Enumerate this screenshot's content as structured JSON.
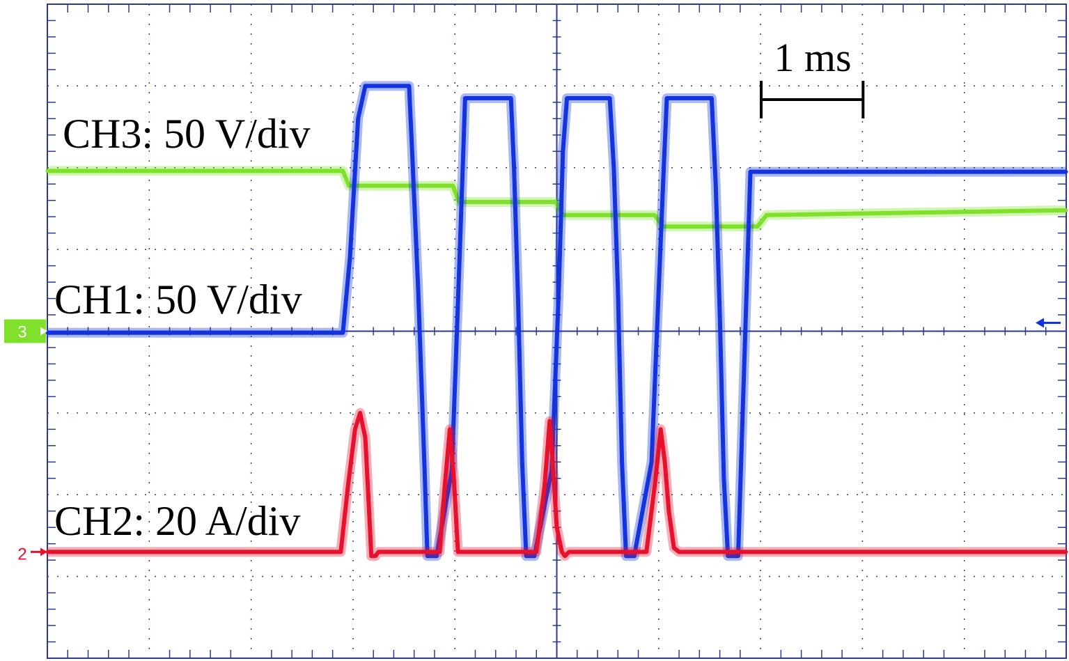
{
  "chart_data": {
    "type": "line",
    "title": "",
    "xlabel": "",
    "ylabel": "",
    "divisions": {
      "x": 10,
      "y": 8
    },
    "xlim": [
      0,
      10
    ],
    "ylim": [
      -4,
      4
    ],
    "grid": true,
    "time_scale": {
      "label": "1 ms",
      "length_div": 1
    },
    "markers": [
      {
        "text": "3",
        "color": "#7fe12a",
        "y": 0
      },
      {
        "text": "2",
        "color": "#e8112d",
        "y": -2.7
      }
    ],
    "series": [
      {
        "name": "CH3: 50 V/div",
        "color": "#7fe12a",
        "x": [
          0,
          2.9,
          2.96,
          3.98,
          4.04,
          4.99,
          5.06,
          5.96,
          6.04,
          6.97,
          7.06,
          10
        ],
        "y": [
          1.96,
          1.96,
          1.78,
          1.78,
          1.58,
          1.58,
          1.42,
          1.42,
          1.28,
          1.28,
          1.42,
          1.48
        ]
      },
      {
        "name": "CH1: 50 V/div",
        "color": "#1233dd",
        "x": [
          0,
          2.9,
          2.97,
          3.05,
          3.12,
          3.18,
          3.55,
          3.58,
          3.64,
          3.7,
          3.73,
          3.82,
          3.97,
          4.03,
          4.08,
          4.1,
          4.55,
          4.58,
          4.62,
          4.66,
          4.7,
          4.78,
          4.95,
          5.02,
          5.06,
          5.1,
          5.52,
          5.56,
          5.6,
          5.64,
          5.68,
          5.76,
          5.93,
          6.0,
          6.05,
          6.08,
          6.52,
          6.56,
          6.6,
          6.64,
          6.68,
          6.78,
          6.9,
          10
        ],
        "y": [
          -0.02,
          -0.02,
          0.9,
          2.6,
          3.0,
          3.0,
          3.0,
          2.2,
          0.5,
          -1.6,
          -2.75,
          -2.75,
          -1.7,
          0.35,
          2.1,
          2.85,
          2.85,
          2.0,
          0.4,
          -1.6,
          -2.75,
          -2.75,
          -1.7,
          0.5,
          2.2,
          2.85,
          2.85,
          2.0,
          0.5,
          -1.6,
          -2.75,
          -2.75,
          -1.6,
          0.5,
          2.0,
          2.85,
          2.85,
          1.8,
          0.2,
          -1.8,
          -2.75,
          -2.75,
          1.95,
          1.95
        ]
      },
      {
        "name": "CH2: 20 A/div",
        "color": "#e8112d",
        "x": [
          0,
          2.88,
          2.95,
          3.02,
          3.07,
          3.12,
          3.15,
          3.18,
          3.22,
          3.25,
          3.32,
          3.85,
          3.9,
          3.95,
          3.99,
          4.03,
          4.06,
          4.1,
          4.8,
          4.84,
          4.88,
          4.93,
          4.96,
          5.0,
          5.05,
          5.08,
          5.12,
          5.15,
          5.88,
          5.92,
          5.97,
          6.02,
          6.06,
          6.1,
          6.15,
          6.2,
          10
        ],
        "y": [
          -2.7,
          -2.7,
          -1.9,
          -1.2,
          -1.0,
          -1.3,
          -2.0,
          -2.75,
          -2.75,
          -2.7,
          -2.7,
          -2.7,
          -1.9,
          -1.2,
          -1.8,
          -2.7,
          -2.7,
          -2.7,
          -2.7,
          -2.3,
          -1.9,
          -1.1,
          -1.6,
          -2.4,
          -2.7,
          -2.75,
          -2.7,
          -2.7,
          -2.7,
          -2.3,
          -1.8,
          -1.2,
          -1.6,
          -2.2,
          -2.65,
          -2.7,
          -2.7
        ]
      }
    ]
  }
}
